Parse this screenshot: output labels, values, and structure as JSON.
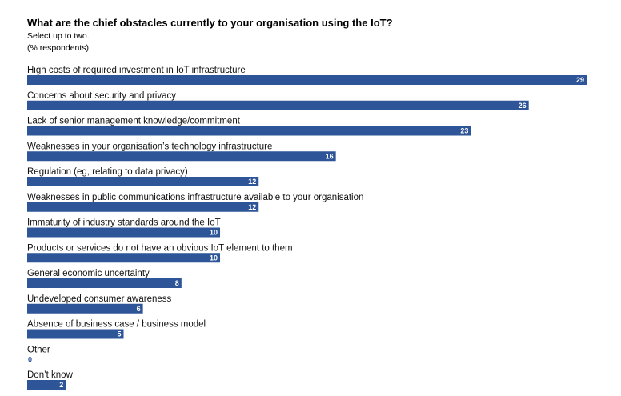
{
  "chart_data": {
    "type": "bar",
    "title": "What are the chief obstacles currently to your organisation using the IoT?",
    "subtitle": "Select up to two.",
    "unit_note": "(% respondents)",
    "categories": [
      "High costs of required investment in IoT infrastructure",
      "Concerns about security and privacy",
      "Lack of senior management knowledge/commitment",
      "Weaknesses in your organisation’s technology infrastructure",
      "Regulation (eg, relating to data privacy)",
      "Weaknesses in public communications infrastructure available to your organisation",
      "Immaturity of industry standards around the IoT",
      "Products or services do not have an obvious IoT element to them",
      "General economic uncertainty",
      "Undeveloped consumer awareness",
      "Absence of business case / business model",
      "Other",
      "Don’t know"
    ],
    "values": [
      29,
      26,
      23,
      16,
      12,
      12,
      10,
      10,
      8,
      6,
      5,
      0,
      2
    ],
    "orientation": "horizontal",
    "bar_color": "#2e5597",
    "xlim": [
      0,
      29
    ],
    "grid": false
  }
}
